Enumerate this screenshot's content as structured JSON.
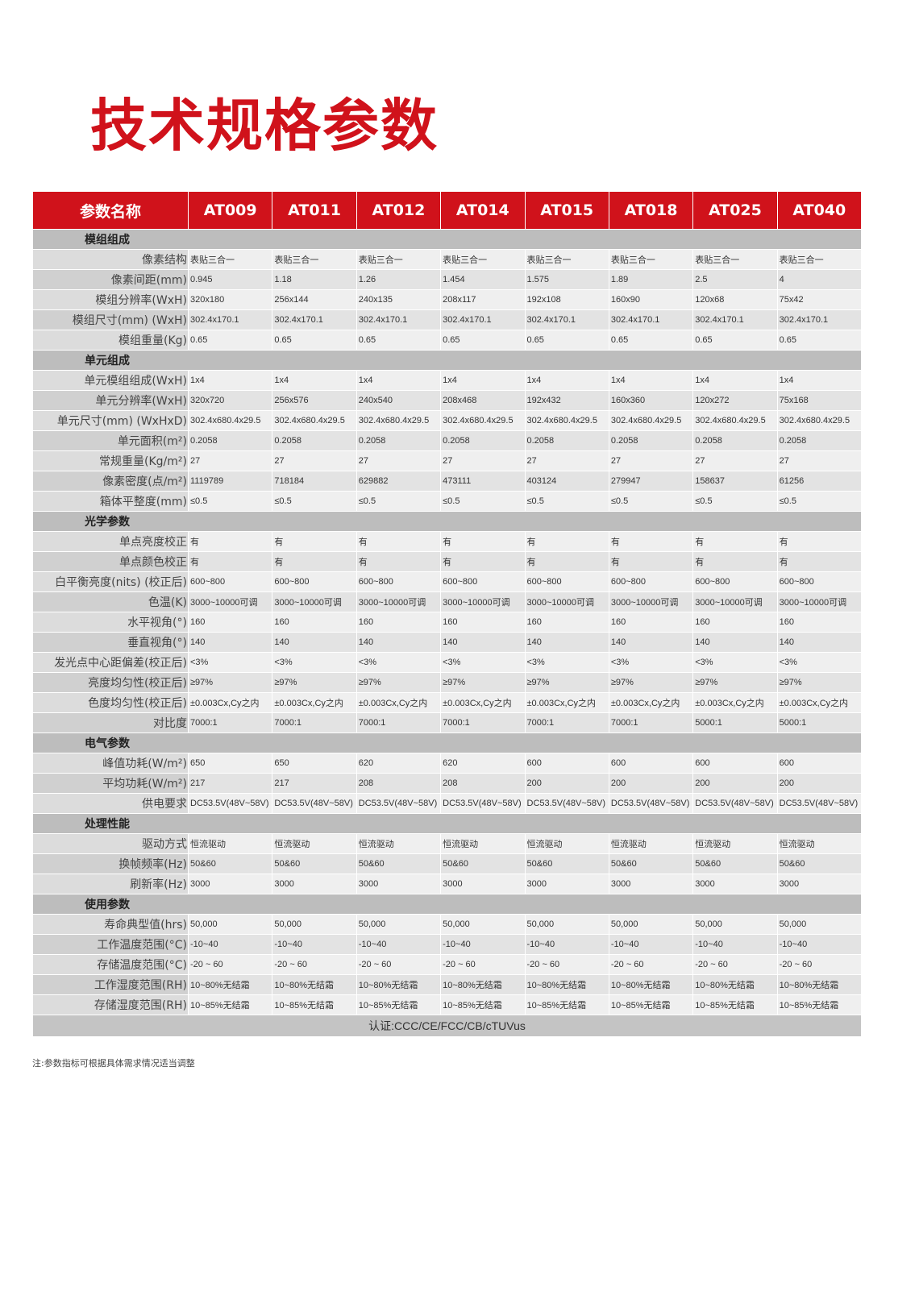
{
  "title": "技术规格参数",
  "header": [
    "参数名称",
    "AT009",
    "AT011",
    "AT012",
    "AT014",
    "AT015",
    "AT018",
    "AT025",
    "AT040"
  ],
  "sections": [
    {
      "name": "模组组成",
      "rows": [
        {
          "label": "像素结构",
          "values": [
            "表贴三合一",
            "表贴三合一",
            "表贴三合一",
            "表贴三合一",
            "表贴三合一",
            "表贴三合一",
            "表贴三合一",
            "表贴三合一"
          ]
        },
        {
          "label": "像素间距(mm)",
          "values": [
            "0.945",
            "1.18",
            "1.26",
            "1.454",
            "1.575",
            "1.89",
            "2.5",
            "4"
          ]
        },
        {
          "label": "模组分辨率(WxH)",
          "values": [
            "320x180",
            "256x144",
            "240x135",
            "208x117",
            "192x108",
            "160x90",
            "120x68",
            "75x42"
          ]
        },
        {
          "label": "模组尺寸(mm) (WxH)",
          "values": [
            "302.4x170.1",
            "302.4x170.1",
            "302.4x170.1",
            "302.4x170.1",
            "302.4x170.1",
            "302.4x170.1",
            "302.4x170.1",
            "302.4x170.1"
          ]
        },
        {
          "label": "模组重量(Kg)",
          "values": [
            "0.65",
            "0.65",
            "0.65",
            "0.65",
            "0.65",
            "0.65",
            "0.65",
            "0.65"
          ]
        }
      ]
    },
    {
      "name": "单元组成",
      "rows": [
        {
          "label": "单元模组组成(WxH)",
          "values": [
            "1x4",
            "1x4",
            "1x4",
            "1x4",
            "1x4",
            "1x4",
            "1x4",
            "1x4"
          ]
        },
        {
          "label": "单元分辨率(WxH)",
          "values": [
            "320x720",
            "256x576",
            "240x540",
            "208x468",
            "192x432",
            "160x360",
            "120x272",
            "75x168"
          ]
        },
        {
          "label": "单元尺寸(mm) (WxHxD)",
          "values": [
            "302.4x680.4x29.5",
            "302.4x680.4x29.5",
            "302.4x680.4x29.5",
            "302.4x680.4x29.5",
            "302.4x680.4x29.5",
            "302.4x680.4x29.5",
            "302.4x680.4x29.5",
            "302.4x680.4x29.5"
          ]
        },
        {
          "label": "单元面积(m²)",
          "values": [
            "0.2058",
            "0.2058",
            "0.2058",
            "0.2058",
            "0.2058",
            "0.2058",
            "0.2058",
            "0.2058"
          ]
        },
        {
          "label": "常规重量(Kg/m²)",
          "values": [
            "27",
            "27",
            "27",
            "27",
            "27",
            "27",
            "27",
            "27"
          ]
        },
        {
          "label": "像素密度(点/m²)",
          "values": [
            "1119789",
            "718184",
            "629882",
            "473111",
            "403124",
            "279947",
            "158637",
            "61256"
          ]
        },
        {
          "label": "箱体平整度(mm)",
          "values": [
            "≤0.5",
            "≤0.5",
            "≤0.5",
            "≤0.5",
            "≤0.5",
            "≤0.5",
            "≤0.5",
            "≤0.5"
          ]
        }
      ]
    },
    {
      "name": "光学参数",
      "rows": [
        {
          "label": "单点亮度校正",
          "values": [
            "有",
            "有",
            "有",
            "有",
            "有",
            "有",
            "有",
            "有"
          ]
        },
        {
          "label": "单点颜色校正",
          "values": [
            "有",
            "有",
            "有",
            "有",
            "有",
            "有",
            "有",
            "有"
          ]
        },
        {
          "label": "白平衡亮度(nits) (校正后)",
          "values": [
            "600~800",
            "600~800",
            "600~800",
            "600~800",
            "600~800",
            "600~800",
            "600~800",
            "600~800"
          ]
        },
        {
          "label": "色温(K)",
          "values": [
            "3000~10000可调",
            "3000~10000可调",
            "3000~10000可调",
            "3000~10000可调",
            "3000~10000可调",
            "3000~10000可调",
            "3000~10000可调",
            "3000~10000可调"
          ]
        },
        {
          "label": "水平视角(°)",
          "values": [
            "160",
            "160",
            "160",
            "160",
            "160",
            "160",
            "160",
            "160"
          ]
        },
        {
          "label": "垂直视角(°)",
          "values": [
            "140",
            "140",
            "140",
            "140",
            "140",
            "140",
            "140",
            "140"
          ]
        },
        {
          "label": "发光点中心距偏差(校正后)",
          "values": [
            "<3%",
            "<3%",
            "<3%",
            "<3%",
            "<3%",
            "<3%",
            "<3%",
            "<3%"
          ]
        },
        {
          "label": "亮度均匀性(校正后)",
          "values": [
            "≥97%",
            "≥97%",
            "≥97%",
            "≥97%",
            "≥97%",
            "≥97%",
            "≥97%",
            "≥97%"
          ]
        },
        {
          "label": "色度均匀性(校正后)",
          "values": [
            "±0.003Cx,Cy之内",
            "±0.003Cx,Cy之内",
            "±0.003Cx,Cy之内",
            "±0.003Cx,Cy之内",
            "±0.003Cx,Cy之内",
            "±0.003Cx,Cy之内",
            "±0.003Cx,Cy之内",
            "±0.003Cx,Cy之内"
          ]
        },
        {
          "label": "对比度",
          "values": [
            "7000:1",
            "7000:1",
            "7000:1",
            "7000:1",
            "7000:1",
            "7000:1",
            "5000:1",
            "5000:1"
          ]
        }
      ]
    },
    {
      "name": "电气参数",
      "rows": [
        {
          "label": "峰值功耗(W/m²)",
          "values": [
            "650",
            "650",
            "620",
            "620",
            "600",
            "600",
            "600",
            "600"
          ]
        },
        {
          "label": "平均功耗(W/m²)",
          "values": [
            "217",
            "217",
            "208",
            "208",
            "200",
            "200",
            "200",
            "200"
          ]
        },
        {
          "label": "供电要求",
          "values": [
            "DC53.5V(48V~58V)",
            "DC53.5V(48V~58V)",
            "DC53.5V(48V~58V)",
            "DC53.5V(48V~58V)",
            "DC53.5V(48V~58V)",
            "DC53.5V(48V~58V)",
            "DC53.5V(48V~58V)",
            "DC53.5V(48V~58V)"
          ]
        }
      ]
    },
    {
      "name": "处理性能",
      "rows": [
        {
          "label": "驱动方式",
          "values": [
            "恒流驱动",
            "恒流驱动",
            "恒流驱动",
            "恒流驱动",
            "恒流驱动",
            "恒流驱动",
            "恒流驱动",
            "恒流驱动"
          ]
        },
        {
          "label": "换帧频率(Hz)",
          "values": [
            "50&60",
            "50&60",
            "50&60",
            "50&60",
            "50&60",
            "50&60",
            "50&60",
            "50&60"
          ]
        },
        {
          "label": "刷新率(Hz)",
          "values": [
            "3000",
            "3000",
            "3000",
            "3000",
            "3000",
            "3000",
            "3000",
            "3000"
          ]
        }
      ]
    },
    {
      "name": "使用参数",
      "rows": [
        {
          "label": "寿命典型值(hrs)",
          "values": [
            "50,000",
            "50,000",
            "50,000",
            "50,000",
            "50,000",
            "50,000",
            "50,000",
            "50,000"
          ]
        },
        {
          "label": "工作温度范围(°C)",
          "values": [
            "-10~40",
            "-10~40",
            "-10~40",
            "-10~40",
            "-10~40",
            "-10~40",
            "-10~40",
            "-10~40"
          ]
        },
        {
          "label": "存储温度范围(°C)",
          "values": [
            "-20 ~ 60",
            "-20 ~ 60",
            "-20 ~ 60",
            "-20 ~ 60",
            "-20 ~ 60",
            "-20 ~ 60",
            "-20 ~ 60",
            "-20 ~ 60"
          ]
        },
        {
          "label": "工作湿度范围(RH)",
          "values": [
            "10~80%无结霜",
            "10~80%无结霜",
            "10~80%无结霜",
            "10~80%无结霜",
            "10~80%无结霜",
            "10~80%无结霜",
            "10~80%无结霜",
            "10~80%无结霜"
          ]
        },
        {
          "label": "存储湿度范围(RH)",
          "values": [
            "10~85%无结霜",
            "10~85%无结霜",
            "10~85%无结霜",
            "10~85%无结霜",
            "10~85%无结霜",
            "10~85%无结霜",
            "10~85%无结霜",
            "10~85%无结霜"
          ]
        }
      ]
    }
  ],
  "certification": "认证:CCC/CE/FCC/CB/cTUVus",
  "note": "注:参数指标可根据具体需求情况适当调整",
  "colors": {
    "accent": "#d0121b"
  }
}
